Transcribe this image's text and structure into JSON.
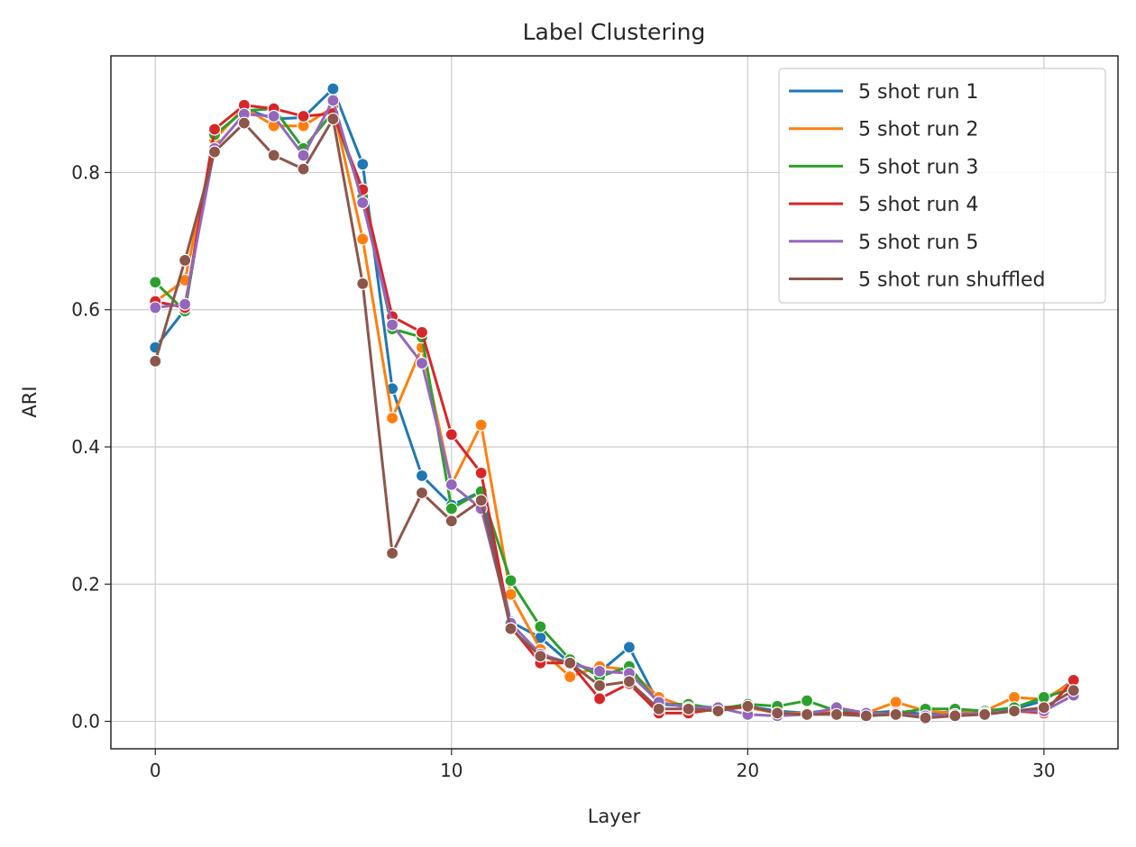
{
  "chart_data": {
    "type": "line",
    "title": "Label Clustering",
    "xlabel": "Layer",
    "ylabel": "ARI",
    "xlim": [
      -1.5,
      32.5
    ],
    "ylim": [
      -0.04,
      0.97
    ],
    "xticks": [
      0,
      10,
      20,
      30
    ],
    "yticks": [
      0.0,
      0.2,
      0.4,
      0.6,
      0.8
    ],
    "xtick_labels": [
      "0",
      "10",
      "20",
      "30"
    ],
    "ytick_labels": [
      "0.0",
      "0.2",
      "0.4",
      "0.6",
      "0.8"
    ],
    "grid": true,
    "legend_position": "top-right",
    "markers": true,
    "x": [
      0,
      1,
      2,
      3,
      4,
      5,
      6,
      7,
      8,
      9,
      10,
      11,
      12,
      13,
      14,
      15,
      16,
      17,
      18,
      19,
      20,
      21,
      22,
      23,
      24,
      25,
      26,
      27,
      28,
      29,
      30,
      31
    ],
    "series": [
      {
        "name": "5 shot run 1",
        "color": "#1f77b4",
        "values": [
          0.545,
          0.6,
          0.85,
          0.893,
          0.878,
          0.88,
          0.922,
          0.812,
          0.485,
          0.358,
          0.315,
          0.335,
          0.145,
          0.122,
          0.085,
          0.072,
          0.108,
          0.025,
          0.022,
          0.02,
          0.022,
          0.015,
          0.012,
          0.018,
          0.012,
          0.015,
          0.01,
          0.015,
          0.012,
          0.018,
          0.03,
          0.06
        ]
      },
      {
        "name": "5 shot run 2",
        "color": "#ff7f0e",
        "values": [
          0.612,
          0.643,
          0.848,
          0.895,
          0.868,
          0.868,
          0.895,
          0.703,
          0.442,
          0.545,
          0.345,
          0.432,
          0.185,
          0.105,
          0.065,
          0.08,
          0.075,
          0.035,
          0.02,
          0.018,
          0.02,
          0.012,
          0.012,
          0.015,
          0.012,
          0.028,
          0.015,
          0.012,
          0.015,
          0.035,
          0.032,
          0.058
        ]
      },
      {
        "name": "5 shot run 3",
        "color": "#2ca02c",
        "values": [
          0.64,
          0.598,
          0.855,
          0.89,
          0.893,
          0.835,
          0.888,
          0.765,
          0.572,
          0.56,
          0.31,
          0.335,
          0.205,
          0.138,
          0.09,
          0.065,
          0.08,
          0.025,
          0.025,
          0.018,
          0.025,
          0.022,
          0.03,
          0.015,
          0.012,
          0.012,
          0.018,
          0.018,
          0.015,
          0.02,
          0.035,
          0.048
        ]
      },
      {
        "name": "5 shot run 4",
        "color": "#d62728",
        "values": [
          0.612,
          0.603,
          0.863,
          0.898,
          0.893,
          0.882,
          0.886,
          0.775,
          0.59,
          0.567,
          0.418,
          0.362,
          0.138,
          0.085,
          0.085,
          0.033,
          0.055,
          0.012,
          0.012,
          0.018,
          0.022,
          0.012,
          0.01,
          0.012,
          0.01,
          0.012,
          0.008,
          0.01,
          0.012,
          0.015,
          0.012,
          0.06
        ]
      },
      {
        "name": "5 shot run 5",
        "color": "#9467bd",
        "values": [
          0.603,
          0.608,
          0.835,
          0.885,
          0.882,
          0.825,
          0.905,
          0.756,
          0.578,
          0.522,
          0.345,
          0.31,
          0.143,
          0.098,
          0.085,
          0.073,
          0.07,
          0.028,
          0.02,
          0.02,
          0.01,
          0.008,
          0.01,
          0.02,
          0.012,
          0.01,
          0.008,
          0.01,
          0.012,
          0.015,
          0.015,
          0.038
        ]
      },
      {
        "name": "5 shot run shuffled",
        "color": "#8c564b",
        "values": [
          0.525,
          0.672,
          0.83,
          0.872,
          0.825,
          0.805,
          0.878,
          0.638,
          0.245,
          0.333,
          0.292,
          0.322,
          0.135,
          0.095,
          0.085,
          0.052,
          0.058,
          0.018,
          0.018,
          0.015,
          0.022,
          0.012,
          0.01,
          0.01,
          0.008,
          0.01,
          0.005,
          0.008,
          0.01,
          0.015,
          0.02,
          0.045
        ]
      }
    ]
  }
}
